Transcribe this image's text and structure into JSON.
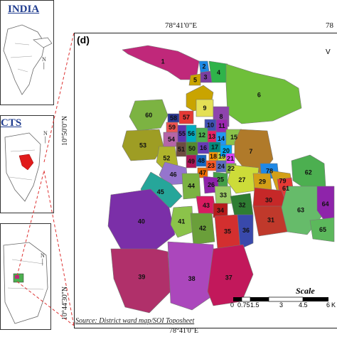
{
  "inset_india": {
    "title": "INDIA"
  },
  "inset_districts": {
    "title": "CTS"
  },
  "main_map": {
    "panel_label": "(d)",
    "top_coord": "78°41'0\"E",
    "top_coord_right": "78",
    "bottom_coord": "78°41'0\"E",
    "left_coord_top": "10°50'0\"N",
    "left_coord_bottom": "10°44'30\"N",
    "source": "Source: District ward map/SOI Toposheet",
    "scale_title": "Scale",
    "scale_ticks": [
      "0",
      "0.75",
      "1.5",
      "3",
      "4.5",
      "6"
    ],
    "scale_unit_partial": "K",
    "north_partial": "V"
  },
  "wards": [
    {
      "id": "1",
      "color": "#c0287a"
    },
    {
      "id": "2",
      "color": "#1e88e5"
    },
    {
      "id": "3",
      "color": "#7b3fa0"
    },
    {
      "id": "4",
      "color": "#2fb34a"
    },
    {
      "id": "5",
      "color": "#c9a400"
    },
    {
      "id": "6",
      "color": "#6fbf3a"
    },
    {
      "id": "7",
      "color": "#b07a2a"
    },
    {
      "id": "8",
      "color": "#8e44ad"
    },
    {
      "id": "9",
      "color": "#e4e055"
    },
    {
      "id": "10",
      "color": "#3f51b5"
    },
    {
      "id": "11",
      "color": "#9c27b0"
    },
    {
      "id": "12",
      "color": "#4caf50"
    },
    {
      "id": "13",
      "color": "#e91e63"
    },
    {
      "id": "14",
      "color": "#2196f3"
    },
    {
      "id": "15",
      "color": "#8bc34a"
    },
    {
      "id": "16",
      "color": "#673ab7"
    },
    {
      "id": "17",
      "color": "#00897b"
    },
    {
      "id": "18",
      "color": "#ff9800"
    },
    {
      "id": "19",
      "color": "#cddc39"
    },
    {
      "id": "20",
      "color": "#03a9f4"
    },
    {
      "id": "21",
      "color": "#e040fb"
    },
    {
      "id": "22",
      "color": "#7cb342"
    },
    {
      "id": "23",
      "color": "#ff5722"
    },
    {
      "id": "24",
      "color": "#5c6bc0"
    },
    {
      "id": "25",
      "color": "#43a047"
    },
    {
      "id": "26",
      "color": "#8e24aa"
    },
    {
      "id": "27",
      "color": "#cddc39"
    },
    {
      "id": "28",
      "color": "#7e57c2"
    },
    {
      "id": "29",
      "color": "#d4a017"
    },
    {
      "id": "30",
      "color": "#c62828"
    },
    {
      "id": "31",
      "color": "#c0392b"
    },
    {
      "id": "32",
      "color": "#2e7d32"
    },
    {
      "id": "33",
      "color": "#9ccc65"
    },
    {
      "id": "34",
      "color": "#b71c1c"
    },
    {
      "id": "35",
      "color": "#d32f2f"
    },
    {
      "id": "36",
      "color": "#3949ab"
    },
    {
      "id": "37",
      "color": "#c2185b"
    },
    {
      "id": "38",
      "color": "#ab47bc"
    },
    {
      "id": "39",
      "color": "#b0306a"
    },
    {
      "id": "40",
      "color": "#7b2fa8"
    },
    {
      "id": "41",
      "color": "#8bc34a"
    },
    {
      "id": "42",
      "color": "#6a9f3a"
    },
    {
      "id": "43",
      "color": "#d81b60"
    },
    {
      "id": "44",
      "color": "#7cb342"
    },
    {
      "id": "45",
      "color": "#26a69a"
    },
    {
      "id": "46",
      "color": "#9575cd"
    },
    {
      "id": "47",
      "color": "#ef6c00"
    },
    {
      "id": "48",
      "color": "#1565c0"
    },
    {
      "id": "49",
      "color": "#ad1457"
    },
    {
      "id": "50",
      "color": "#558b2f"
    },
    {
      "id": "51",
      "color": "#6d4c41"
    },
    {
      "id": "52",
      "color": "#afb42b"
    },
    {
      "id": "53",
      "color": "#9e9d24"
    },
    {
      "id": "54",
      "color": "#b565a7"
    },
    {
      "id": "55",
      "color": "#5e35b1"
    },
    {
      "id": "56",
      "color": "#00acc1"
    },
    {
      "id": "57",
      "color": "#e53935"
    },
    {
      "id": "58",
      "color": "#283593"
    },
    {
      "id": "59",
      "color": "#ef5350"
    },
    {
      "id": "60",
      "color": "#7cb342"
    },
    {
      "id": "61",
      "color": "#e53935"
    },
    {
      "id": "62",
      "color": "#4caf50"
    },
    {
      "id": "63",
      "color": "#66bb6a"
    },
    {
      "id": "64",
      "color": "#8e24aa"
    },
    {
      "id": "65",
      "color": "#5cb85c"
    },
    {
      "id": "78",
      "color": "#1e88e5"
    },
    {
      "id": "79",
      "color": "#d4a017"
    }
  ]
}
